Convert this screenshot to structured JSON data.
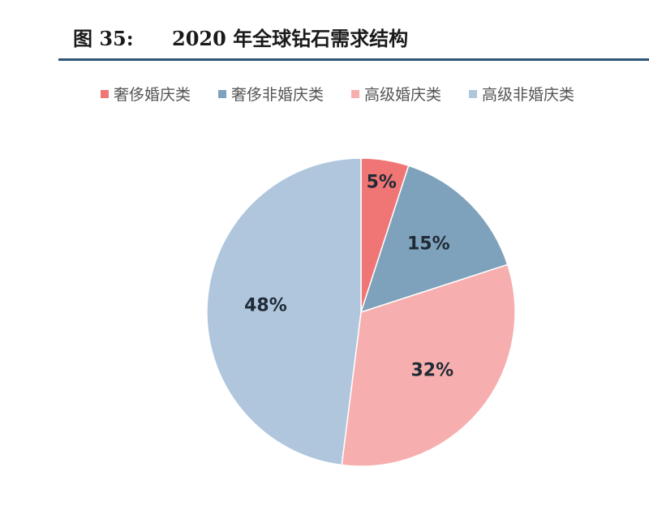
{
  "figure": {
    "number": "图 35:",
    "title": "2020 年全球钻石需求结构"
  },
  "chart_data": {
    "type": "pie",
    "categories": [
      "奢侈婚庆类",
      "奢侈非婚庆类",
      "高级婚庆类",
      "高级非婚庆类"
    ],
    "values": [
      5,
      15,
      32,
      48
    ],
    "labels": [
      "5%",
      "15%",
      "32%",
      "48%"
    ],
    "colors": [
      "#f07575",
      "#7fa2bc",
      "#f7aeae",
      "#afc6dd"
    ],
    "legend_position": "top",
    "start_angle": "12 o'clock, clockwise"
  }
}
